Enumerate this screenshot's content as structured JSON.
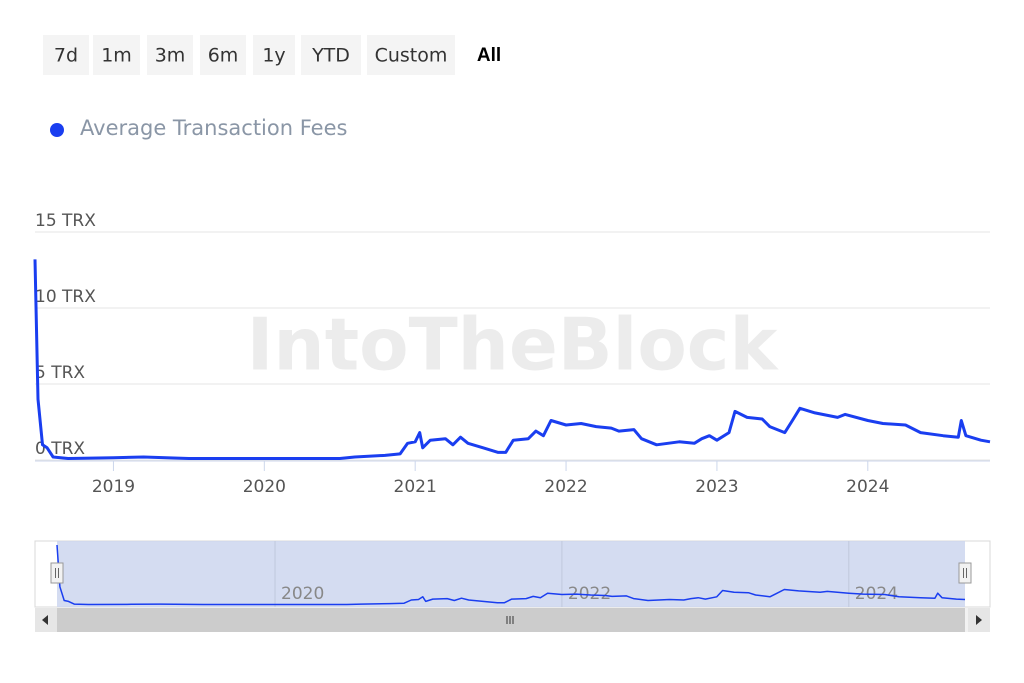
{
  "range_buttons": [
    "7d",
    "1m",
    "3m",
    "6m",
    "1y",
    "YTD",
    "Custom",
    "All"
  ],
  "watermark": "IntoTheBlock",
  "chart_data": {
    "type": "line",
    "series": [
      {
        "name": "Average Transaction Fees",
        "color": "#1a3ef0",
        "x": [
          2018.48,
          2018.5,
          2018.53,
          2018.56,
          2018.6,
          2018.7,
          2019.0,
          2019.2,
          2019.5,
          2020.0,
          2020.5,
          2020.6,
          2020.8,
          2020.9,
          2020.95,
          2021.0,
          2021.03,
          2021.05,
          2021.1,
          2021.2,
          2021.25,
          2021.3,
          2021.35,
          2021.45,
          2021.55,
          2021.6,
          2021.65,
          2021.75,
          2021.8,
          2021.85,
          2021.9,
          2022.0,
          2022.1,
          2022.2,
          2022.3,
          2022.35,
          2022.45,
          2022.5,
          2022.6,
          2022.75,
          2022.85,
          2022.9,
          2022.95,
          2023.0,
          2023.08,
          2023.12,
          2023.2,
          2023.3,
          2023.35,
          2023.45,
          2023.5,
          2023.55,
          2023.65,
          2023.8,
          2023.85,
          2024.0,
          2024.1,
          2024.25,
          2024.35,
          2024.5,
          2024.6,
          2024.62,
          2024.65,
          2024.75,
          2024.81
        ],
        "values": [
          13.2,
          4,
          1,
          0.8,
          0.2,
          0.1,
          0.15,
          0.2,
          0.1,
          0.1,
          0.1,
          0.2,
          0.3,
          0.4,
          1.1,
          1.2,
          1.8,
          0.8,
          1.3,
          1.4,
          1.0,
          1.5,
          1.1,
          0.8,
          0.5,
          0.5,
          1.3,
          1.4,
          1.9,
          1.6,
          2.6,
          2.3,
          2.4,
          2.2,
          2.1,
          1.9,
          2.0,
          1.4,
          1.0,
          1.2,
          1.1,
          1.4,
          1.6,
          1.3,
          1.8,
          3.2,
          2.8,
          2.7,
          2.2,
          1.8,
          2.6,
          3.4,
          3.1,
          2.8,
          3.0,
          2.6,
          2.4,
          2.3,
          1.8,
          1.6,
          1.5,
          2.6,
          1.6,
          1.3,
          1.2
        ]
      }
    ],
    "xlim": [
      2018.48,
      2024.81
    ],
    "xticks": [
      2019,
      2020,
      2021,
      2022,
      2023,
      2024
    ],
    "ylim": [
      0,
      15
    ],
    "yticks": [
      {
        "value": 0,
        "label": "0 TRX"
      },
      {
        "value": 5,
        "label": "5 TRX"
      },
      {
        "value": 10,
        "label": "10 TRX"
      },
      {
        "value": 15,
        "label": "15 TRX"
      }
    ],
    "grid": true,
    "navigator": {
      "xticks": [
        2020,
        2022,
        2024
      ]
    }
  }
}
